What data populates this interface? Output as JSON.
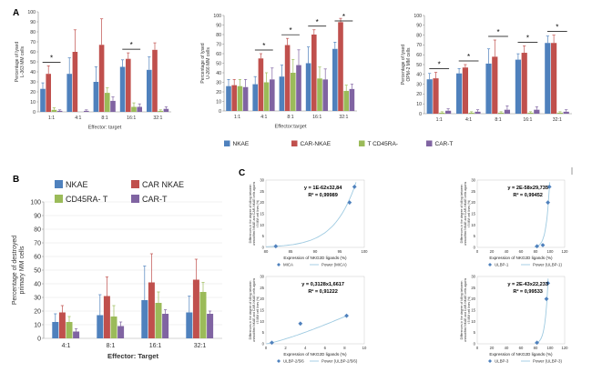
{
  "panel_labels": {
    "a": "A",
    "b": "B",
    "c": "C"
  },
  "colors": {
    "NKAE": "#4f81bd",
    "CAR-NKAE": "#c0504d",
    "CD45RA-T": "#9bbb59",
    "CAR-T": "#8064a2",
    "fit": "#9ecae1",
    "point": "#4f81bd",
    "sig": "#000000"
  },
  "chart_data": [
    {
      "id": "A1",
      "type": "bar",
      "panel": "A",
      "ylabel": "Percentage of lysed L-363 MM cells",
      "xlabel": "Effector: target",
      "ylim": [
        0,
        100
      ],
      "yticks": [
        0,
        10,
        20,
        30,
        40,
        50,
        60,
        70,
        80,
        90,
        100
      ],
      "categories": [
        "1:1",
        "4:1",
        "8:1",
        "16:1",
        "32:1"
      ],
      "series": [
        {
          "name": "NKAE",
          "values": [
            23,
            38,
            30,
            45,
            42
          ],
          "errors": [
            6,
            16,
            15,
            7,
            13
          ]
        },
        {
          "name": "CAR-NKAE",
          "values": [
            38,
            60,
            67,
            53,
            62
          ],
          "errors": [
            8,
            22,
            26,
            6,
            7
          ]
        },
        {
          "name": "T CD45RA-",
          "values": [
            2,
            0,
            19,
            5,
            1
          ],
          "errors": [
            2,
            0,
            5,
            4,
            1
          ]
        },
        {
          "name": "CAR-T",
          "values": [
            1,
            1,
            11,
            5,
            3
          ],
          "errors": [
            1,
            1,
            4,
            3,
            2
          ]
        }
      ],
      "significance": [
        {
          "category": "1:1",
          "label": "*"
        },
        {
          "category": "16:1",
          "label": "*"
        }
      ]
    },
    {
      "id": "A2",
      "type": "bar",
      "panel": "A",
      "ylabel": "Percentage of lysed U-266 MM cells",
      "xlabel": "Effector:target",
      "ylim": [
        0,
        100
      ],
      "yticks": [
        0,
        10,
        20,
        30,
        40,
        50,
        60,
        70,
        80,
        90,
        100
      ],
      "categories": [
        "1:1",
        "4:1",
        "8:1",
        "16:1",
        "32:1"
      ],
      "series": [
        {
          "name": "NKAE",
          "values": [
            26,
            28,
            36,
            50,
            65
          ],
          "errors": [
            7,
            8,
            12,
            17,
            7
          ]
        },
        {
          "name": "CAR-NKAE",
          "values": [
            27,
            55,
            69,
            80,
            93
          ],
          "errors": [
            6,
            5,
            7,
            5,
            4
          ]
        },
        {
          "name": "T CD45RA-",
          "values": [
            26,
            30,
            40,
            34,
            21
          ],
          "errors": [
            7,
            10,
            14,
            12,
            6
          ]
        },
        {
          "name": "CAR-T",
          "values": [
            25,
            33,
            48,
            33,
            23
          ],
          "errors": [
            8,
            12,
            16,
            11,
            5
          ]
        }
      ],
      "significance": [
        {
          "category": "4:1",
          "label": "*"
        },
        {
          "category": "8:1",
          "label": "*"
        },
        {
          "category": "16:1",
          "label": "*"
        },
        {
          "category": "32:1",
          "label": "*"
        }
      ]
    },
    {
      "id": "A3",
      "type": "bar",
      "panel": "A",
      "ylabel": "Percentage of lysed OPM-2 MM cells",
      "xlabel": "",
      "ylim": [
        0,
        100
      ],
      "yticks": [
        0,
        10,
        20,
        30,
        40,
        50,
        60,
        70,
        80,
        90,
        100
      ],
      "categories": [
        "1:1",
        "4:1",
        "8:1",
        "16:1",
        "32:1"
      ],
      "series": [
        {
          "name": "NKAE",
          "values": [
            35,
            41,
            51,
            55,
            72
          ],
          "errors": [
            6,
            5,
            15,
            6,
            7
          ]
        },
        {
          "name": "CAR-NKAE",
          "values": [
            36,
            47,
            58,
            62,
            72
          ],
          "errors": [
            6,
            3,
            17,
            7,
            8
          ]
        },
        {
          "name": "T CD45RA-",
          "values": [
            1,
            1,
            1,
            1,
            1
          ],
          "errors": [
            1,
            1,
            1,
            1,
            1
          ]
        },
        {
          "name": "CAR-T",
          "values": [
            3,
            2,
            4,
            4,
            2
          ],
          "errors": [
            2,
            2,
            4,
            3,
            2
          ]
        }
      ],
      "significance": [
        {
          "category": "1:1",
          "label": "*"
        },
        {
          "category": "4:1",
          "label": "*"
        },
        {
          "category": "8:1",
          "label": "*"
        },
        {
          "category": "16:1",
          "label": "*"
        },
        {
          "category": "32:1",
          "label": "*"
        }
      ]
    },
    {
      "id": "B",
      "type": "bar",
      "panel": "B",
      "ylabel": "Percentage of destroyed primary MM cells",
      "xlabel": "Effector: Target",
      "ylim": [
        0,
        100
      ],
      "yticks": [
        0,
        10,
        20,
        30,
        40,
        50,
        60,
        70,
        80,
        90,
        100
      ],
      "categories": [
        "4:1",
        "8:1",
        "16:1",
        "32:1"
      ],
      "series": [
        {
          "name": "NKAE",
          "values": [
            12,
            17,
            28,
            19
          ],
          "errors": [
            6,
            15,
            25,
            12
          ]
        },
        {
          "name": "CAR NKAE",
          "values": [
            19,
            31,
            41,
            43
          ],
          "errors": [
            5,
            14,
            21,
            15
          ]
        },
        {
          "name": "CD45RA- T",
          "values": [
            12,
            16,
            26,
            34
          ],
          "errors": [
            4,
            8,
            8,
            7
          ]
        },
        {
          "name": "CAR-T",
          "values": [
            5,
            9,
            18,
            18
          ],
          "errors": [
            2,
            3,
            3,
            2
          ]
        }
      ]
    },
    {
      "id": "C1",
      "type": "scatter",
      "panel": "C",
      "ylabel": "Differences in the degree of killing between unmodified NKAE and CAR-NKAE cells against 5 MM cell lines (%)",
      "xlabel": "Expression of NKG2D ligands (%)",
      "xlim": [
        80,
        100
      ],
      "ylim": [
        0,
        30
      ],
      "xticks": [
        80,
        85,
        90,
        95,
        100
      ],
      "yticks": [
        0,
        5,
        10,
        15,
        20,
        25,
        30
      ],
      "points": [
        {
          "x": 82,
          "y": 0.5
        },
        {
          "x": 97,
          "y": 20
        },
        {
          "x": 98,
          "y": 27
        }
      ],
      "fit": {
        "kind": "power",
        "equation": "y = 1E-62x32,84",
        "r2": "R² = 0,99989"
      },
      "legend": [
        "MICA",
        "Power (MICA)"
      ]
    },
    {
      "id": "C2",
      "type": "scatter",
      "panel": "C",
      "ylabel": "Differences in the degree of killing between unmodified NKAE and CAR-NKAE cells against 5 MM cell lines (%)",
      "xlabel": "Expression of NKG2D ligands (%)",
      "xlim": [
        0,
        120
      ],
      "ylim": [
        0,
        30
      ],
      "xticks": [
        0,
        20,
        40,
        60,
        80,
        100,
        120
      ],
      "yticks": [
        0,
        5,
        10,
        15,
        20,
        25,
        30
      ],
      "points": [
        {
          "x": 82,
          "y": 0.5
        },
        {
          "x": 90,
          "y": 1
        },
        {
          "x": 97,
          "y": 20
        },
        {
          "x": 99,
          "y": 27
        }
      ],
      "fit": {
        "kind": "power",
        "equation": "y = 2E-58x29,735",
        "r2": "R² = 0,99452"
      },
      "legend": [
        "ULBP-1",
        "Power (ULBP-1)"
      ]
    },
    {
      "id": "C3",
      "type": "scatter",
      "panel": "C",
      "ylabel": "Differences in the degree of killing between unmodified NKAE and CAR-NKAE cells against 5 MM cell lines (%)",
      "xlabel": "Expression of NKG2D ligands (%)",
      "xlim": [
        0,
        10
      ],
      "ylim": [
        0,
        30
      ],
      "xticks": [
        0,
        2,
        4,
        6,
        8,
        10
      ],
      "yticks": [
        0,
        5,
        10,
        15,
        20,
        25,
        30
      ],
      "points": [
        {
          "x": 0.6,
          "y": 0.5
        },
        {
          "x": 3.5,
          "y": 9
        },
        {
          "x": 8.2,
          "y": 12.5
        }
      ],
      "fit": {
        "kind": "power",
        "equation": "y = 0,3128x1,6617",
        "r2": "R² = 0,91222"
      },
      "legend": [
        "ULBP-2/5/6",
        "Power (ULBP-2/5/6)"
      ]
    },
    {
      "id": "C4",
      "type": "scatter",
      "panel": "C",
      "ylabel": "Differences in the degree of killing between unmodified NKAE and CAR-NKAE cells against 5 MM cell lines (%)",
      "xlabel": "Expression of NKG2D ligands (%)",
      "xlim": [
        0,
        120
      ],
      "ylim": [
        0,
        30
      ],
      "xticks": [
        0,
        20,
        40,
        60,
        80,
        100,
        120
      ],
      "yticks": [
        0,
        5,
        10,
        15,
        20,
        25,
        30
      ],
      "points": [
        {
          "x": 82,
          "y": 0.5
        },
        {
          "x": 95,
          "y": 20
        },
        {
          "x": 97,
          "y": 27
        }
      ],
      "fit": {
        "kind": "power",
        "equation": "y = 2E-43x22,233",
        "r2": "R² = 0,99533"
      },
      "legend": [
        "ULBP-3",
        "Power (ULBP-3)"
      ]
    }
  ],
  "legend_a": [
    "NKAE",
    "CAR-NKAE",
    "T CD45RA-",
    "CAR-T"
  ],
  "legend_b": [
    "NKAE",
    "CAR NKAE",
    "CD45RA- T",
    "CAR-T"
  ]
}
